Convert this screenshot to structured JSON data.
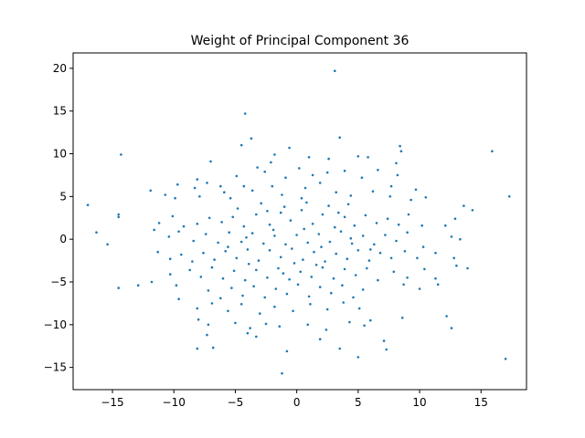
{
  "chart_data": {
    "type": "scatter",
    "title": "Weight of Principal Component 36",
    "xlabel": "",
    "ylabel": "",
    "xlim": [
      -18.2,
      18.7
    ],
    "ylim": [
      -17.6,
      21.8
    ],
    "xticks": [
      -15,
      -10,
      -5,
      0,
      5,
      10,
      15
    ],
    "yticks": [
      -15,
      -10,
      -5,
      0,
      5,
      10,
      15,
      20
    ],
    "xtick_labels": [
      "−15",
      "−10",
      "−5",
      "0",
      "5",
      "10",
      "15"
    ],
    "ytick_labels": [
      "−15",
      "−10",
      "−5",
      "0",
      "5",
      "10",
      "15",
      "20"
    ],
    "grid": false,
    "legend": "none",
    "marker_color": "#1f77b4",
    "series": [
      {
        "points": [
          [
            3.1,
            19.7
          ],
          [
            -4.2,
            14.7
          ],
          [
            -3.7,
            11.8
          ],
          [
            -4.5,
            11.0
          ],
          [
            -0.6,
            10.7
          ],
          [
            3.5,
            11.9
          ],
          [
            8.4,
            10.9
          ],
          [
            8.5,
            10.3
          ],
          [
            15.9,
            10.3
          ],
          [
            -14.3,
            9.9
          ],
          [
            -7.0,
            9.1
          ],
          [
            -2.1,
            9.0
          ],
          [
            -1.8,
            9.9
          ],
          [
            1.0,
            9.6
          ],
          [
            2.6,
            9.4
          ],
          [
            5.0,
            9.7
          ],
          [
            5.8,
            9.6
          ],
          [
            8.1,
            8.9
          ],
          [
            -8.1,
            7.0
          ],
          [
            -8.3,
            6.0
          ],
          [
            -7.3,
            6.6
          ],
          [
            -6.2,
            6.2
          ],
          [
            -4.9,
            7.4
          ],
          [
            -3.2,
            8.4
          ],
          [
            -2.6,
            7.9
          ],
          [
            -0.9,
            7.2
          ],
          [
            0.2,
            8.3
          ],
          [
            1.3,
            7.5
          ],
          [
            2.5,
            7.8
          ],
          [
            3.9,
            8.0
          ],
          [
            5.3,
            7.2
          ],
          [
            6.6,
            8.1
          ],
          [
            7.7,
            6.2
          ],
          [
            8.2,
            7.5
          ],
          [
            9.7,
            5.8
          ],
          [
            10.5,
            4.9
          ],
          [
            -17.0,
            4.0
          ],
          [
            -11.9,
            5.7
          ],
          [
            -10.7,
            5.2
          ],
          [
            -9.9,
            4.8
          ],
          [
            -9.7,
            6.4
          ],
          [
            -7.9,
            5.0
          ],
          [
            -5.9,
            5.5
          ],
          [
            -5.4,
            4.8
          ],
          [
            -4.3,
            6.2
          ],
          [
            -3.6,
            5.7
          ],
          [
            -2.0,
            6.2
          ],
          [
            -1.2,
            5.2
          ],
          [
            0.7,
            6.0
          ],
          [
            1.9,
            6.6
          ],
          [
            3.2,
            5.5
          ],
          [
            4.4,
            5.1
          ],
          [
            6.2,
            5.6
          ],
          [
            7.6,
            5.0
          ],
          [
            9.3,
            4.6
          ],
          [
            13.6,
            3.9
          ],
          [
            14.3,
            3.4
          ],
          [
            17.3,
            5.0
          ],
          [
            -14.5,
            2.9
          ],
          [
            -14.5,
            2.6
          ],
          [
            -11.2,
            1.9
          ],
          [
            -10.1,
            2.7
          ],
          [
            -9.2,
            1.5
          ],
          [
            -8.1,
            1.8
          ],
          [
            -7.1,
            2.5
          ],
          [
            -6.1,
            2.0
          ],
          [
            -5.2,
            2.6
          ],
          [
            -4.3,
            1.5
          ],
          [
            -3.3,
            2.9
          ],
          [
            -2.2,
            1.7
          ],
          [
            -1.3,
            3.1
          ],
          [
            -0.5,
            2.2
          ],
          [
            0.4,
            3.4
          ],
          [
            1.3,
            1.8
          ],
          [
            2.1,
            2.9
          ],
          [
            3.1,
            1.4
          ],
          [
            3.9,
            2.6
          ],
          [
            4.7,
            1.6
          ],
          [
            5.6,
            2.8
          ],
          [
            6.5,
            1.9
          ],
          [
            7.4,
            2.4
          ],
          [
            8.3,
            1.7
          ],
          [
            9.1,
            2.9
          ],
          [
            10.2,
            1.6
          ],
          [
            12.1,
            1.6
          ],
          [
            12.9,
            2.4
          ],
          [
            -16.3,
            0.8
          ],
          [
            -15.4,
            -0.6
          ],
          [
            -11.6,
            1.1
          ],
          [
            -10.4,
            0.3
          ],
          [
            -9.6,
            0.9
          ],
          [
            -8.4,
            -0.2
          ],
          [
            -7.4,
            0.6
          ],
          [
            -6.4,
            -0.4
          ],
          [
            -5.5,
            0.8
          ],
          [
            -4.5,
            -0.3
          ],
          [
            -3.6,
            0.7
          ],
          [
            -2.7,
            -0.5
          ],
          [
            -1.8,
            0.4
          ],
          [
            -0.9,
            -0.6
          ],
          [
            0.0,
            0.5
          ],
          [
            0.9,
            -0.4
          ],
          [
            1.8,
            0.6
          ],
          [
            2.7,
            -0.3
          ],
          [
            3.6,
            0.9
          ],
          [
            4.5,
            -0.5
          ],
          [
            5.4,
            0.4
          ],
          [
            6.3,
            -0.6
          ],
          [
            7.2,
            0.5
          ],
          [
            8.1,
            -0.2
          ],
          [
            9.0,
            0.8
          ],
          [
            10.3,
            -0.9
          ],
          [
            12.6,
            0.3
          ],
          [
            13.3,
            0.0
          ],
          [
            -11.3,
            -1.5
          ],
          [
            -10.3,
            -2.3
          ],
          [
            -9.4,
            -1.8
          ],
          [
            -8.5,
            -2.6
          ],
          [
            -7.6,
            -1.6
          ],
          [
            -6.7,
            -2.4
          ],
          [
            -5.8,
            -1.4
          ],
          [
            -4.9,
            -2.2
          ],
          [
            -4.0,
            -1.2
          ],
          [
            -3.1,
            -2.5
          ],
          [
            -2.2,
            -1.3
          ],
          [
            -1.3,
            -2.1
          ],
          [
            -0.4,
            -1.1
          ],
          [
            0.5,
            -2.4
          ],
          [
            1.4,
            -1.5
          ],
          [
            2.3,
            -2.6
          ],
          [
            3.2,
            -1.7
          ],
          [
            4.1,
            -2.3
          ],
          [
            5.0,
            -1.3
          ],
          [
            5.9,
            -2.5
          ],
          [
            6.8,
            -1.6
          ],
          [
            7.7,
            -2.2
          ],
          [
            8.8,
            -1.4
          ],
          [
            9.8,
            -2.2
          ],
          [
            11.3,
            -1.6
          ],
          [
            12.8,
            -2.2
          ],
          [
            -14.5,
            -5.7
          ],
          [
            -12.9,
            -5.4
          ],
          [
            -9.8,
            -5.4
          ],
          [
            -10.3,
            -4.1
          ],
          [
            -8.7,
            -3.6
          ],
          [
            -7.8,
            -4.4
          ],
          [
            -6.9,
            -3.3
          ],
          [
            -6.0,
            -4.6
          ],
          [
            -5.1,
            -3.7
          ],
          [
            -4.2,
            -4.8
          ],
          [
            -3.3,
            -3.6
          ],
          [
            -2.4,
            -4.5
          ],
          [
            -1.5,
            -3.4
          ],
          [
            -0.6,
            -4.7
          ],
          [
            0.3,
            -3.8
          ],
          [
            1.2,
            -4.4
          ],
          [
            2.1,
            -3.3
          ],
          [
            3.0,
            -4.6
          ],
          [
            3.9,
            -3.5
          ],
          [
            4.8,
            -4.2
          ],
          [
            5.7,
            -3.4
          ],
          [
            6.6,
            -4.8
          ],
          [
            7.9,
            -3.8
          ],
          [
            9.0,
            -4.5
          ],
          [
            10.4,
            -3.5
          ],
          [
            11.3,
            -4.6
          ],
          [
            13.0,
            -3.1
          ],
          [
            13.9,
            -3.4
          ],
          [
            -11.8,
            -5.0
          ],
          [
            -7.2,
            -6.0
          ],
          [
            -6.2,
            -6.9
          ],
          [
            -5.3,
            -5.7
          ],
          [
            -4.4,
            -6.6
          ],
          [
            -3.5,
            -5.5
          ],
          [
            -2.6,
            -6.8
          ],
          [
            -1.7,
            -5.8
          ],
          [
            -0.8,
            -6.4
          ],
          [
            0.1,
            -5.3
          ],
          [
            1.0,
            -6.7
          ],
          [
            1.9,
            -5.6
          ],
          [
            2.8,
            -6.3
          ],
          [
            3.7,
            -5.4
          ],
          [
            4.6,
            -6.8
          ],
          [
            5.4,
            -5.9
          ],
          [
            8.7,
            -5.3
          ],
          [
            10.0,
            -5.8
          ],
          [
            11.5,
            -5.3
          ],
          [
            -9.6,
            -7.0
          ],
          [
            -8.1,
            -8.1
          ],
          [
            -6.9,
            -7.5
          ],
          [
            -5.6,
            -8.4
          ],
          [
            -4.5,
            -7.6
          ],
          [
            -3.0,
            -8.7
          ],
          [
            -1.8,
            -7.9
          ],
          [
            -0.3,
            -8.4
          ],
          [
            1.1,
            -7.6
          ],
          [
            2.5,
            -8.2
          ],
          [
            3.8,
            -7.4
          ],
          [
            5.1,
            -8.1
          ],
          [
            -8.0,
            -9.4
          ],
          [
            -7.2,
            -10.0
          ],
          [
            -5.0,
            -9.8
          ],
          [
            -3.8,
            -10.4
          ],
          [
            -2.5,
            -9.9
          ],
          [
            -1.4,
            -10.2
          ],
          [
            0.9,
            -10.0
          ],
          [
            2.4,
            -10.6
          ],
          [
            4.3,
            -9.7
          ],
          [
            5.5,
            -10.1
          ],
          [
            6.0,
            -9.5
          ],
          [
            8.6,
            -9.2
          ],
          [
            12.2,
            -9.0
          ],
          [
            12.6,
            -10.4
          ],
          [
            -8.1,
            -12.8
          ],
          [
            -7.3,
            -11.2
          ],
          [
            -6.8,
            -12.7
          ],
          [
            -4.0,
            -11.0
          ],
          [
            -3.3,
            -11.4
          ],
          [
            -0.8,
            -13.1
          ],
          [
            1.9,
            -11.7
          ],
          [
            3.5,
            -12.8
          ],
          [
            5.0,
            -13.8
          ],
          [
            7.1,
            -11.9
          ],
          [
            7.3,
            -12.9
          ],
          [
            17.0,
            -14.0
          ],
          [
            -1.2,
            -15.7
          ],
          [
            -4.8,
            3.6
          ],
          [
            -2.9,
            4.2
          ],
          [
            -1.0,
            3.8
          ],
          [
            0.8,
            4.3
          ],
          [
            2.6,
            3.9
          ],
          [
            4.2,
            4.1
          ],
          [
            -3.9,
            -2.9
          ],
          [
            -1.9,
            1.1
          ],
          [
            0.6,
            1.2
          ],
          [
            2.0,
            -0.9
          ],
          [
            -0.2,
            -2.8
          ],
          [
            1.6,
            -3.0
          ],
          [
            -2.4,
            3.3
          ],
          [
            3.4,
            3.1
          ],
          [
            -5.6,
            -0.9
          ],
          [
            6.0,
            -1.2
          ],
          [
            -1.1,
            -4.0
          ],
          [
            0.4,
            4.8
          ],
          [
            -4.1,
            0.2
          ],
          [
            4.4,
            0.1
          ]
        ]
      }
    ]
  }
}
